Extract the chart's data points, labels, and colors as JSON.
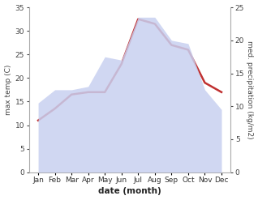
{
  "months": [
    "Jan",
    "Feb",
    "Mar",
    "Apr",
    "May",
    "Jun",
    "Jul",
    "Aug",
    "Sep",
    "Oct",
    "Nov",
    "Dec"
  ],
  "x": [
    0,
    1,
    2,
    3,
    4,
    5,
    6,
    7,
    8,
    9,
    10,
    11
  ],
  "temp_max": [
    11,
    13.5,
    16.5,
    17,
    17,
    23,
    32.5,
    31.5,
    27,
    26,
    19,
    17
  ],
  "precipitation": [
    10.5,
    12.5,
    12.5,
    13,
    17.5,
    17,
    23.5,
    23.5,
    20,
    19.5,
    12.5,
    9.5
  ],
  "temp_ylim": [
    0,
    35
  ],
  "precip_ylim": [
    0,
    25
  ],
  "temp_color": "#c03030",
  "precip_fill_color": "#c8d0f0",
  "precip_fill_alpha": 0.85,
  "temp_yticks": [
    0,
    5,
    10,
    15,
    20,
    25,
    30,
    35
  ],
  "precip_yticks": [
    0,
    5,
    10,
    15,
    20,
    25
  ],
  "ylabel_left": "max temp (C)",
  "ylabel_right": "med. precipitation (kg/m2)",
  "xlabel": "date (month)",
  "background_color": "#ffffff",
  "linewidth": 1.8
}
